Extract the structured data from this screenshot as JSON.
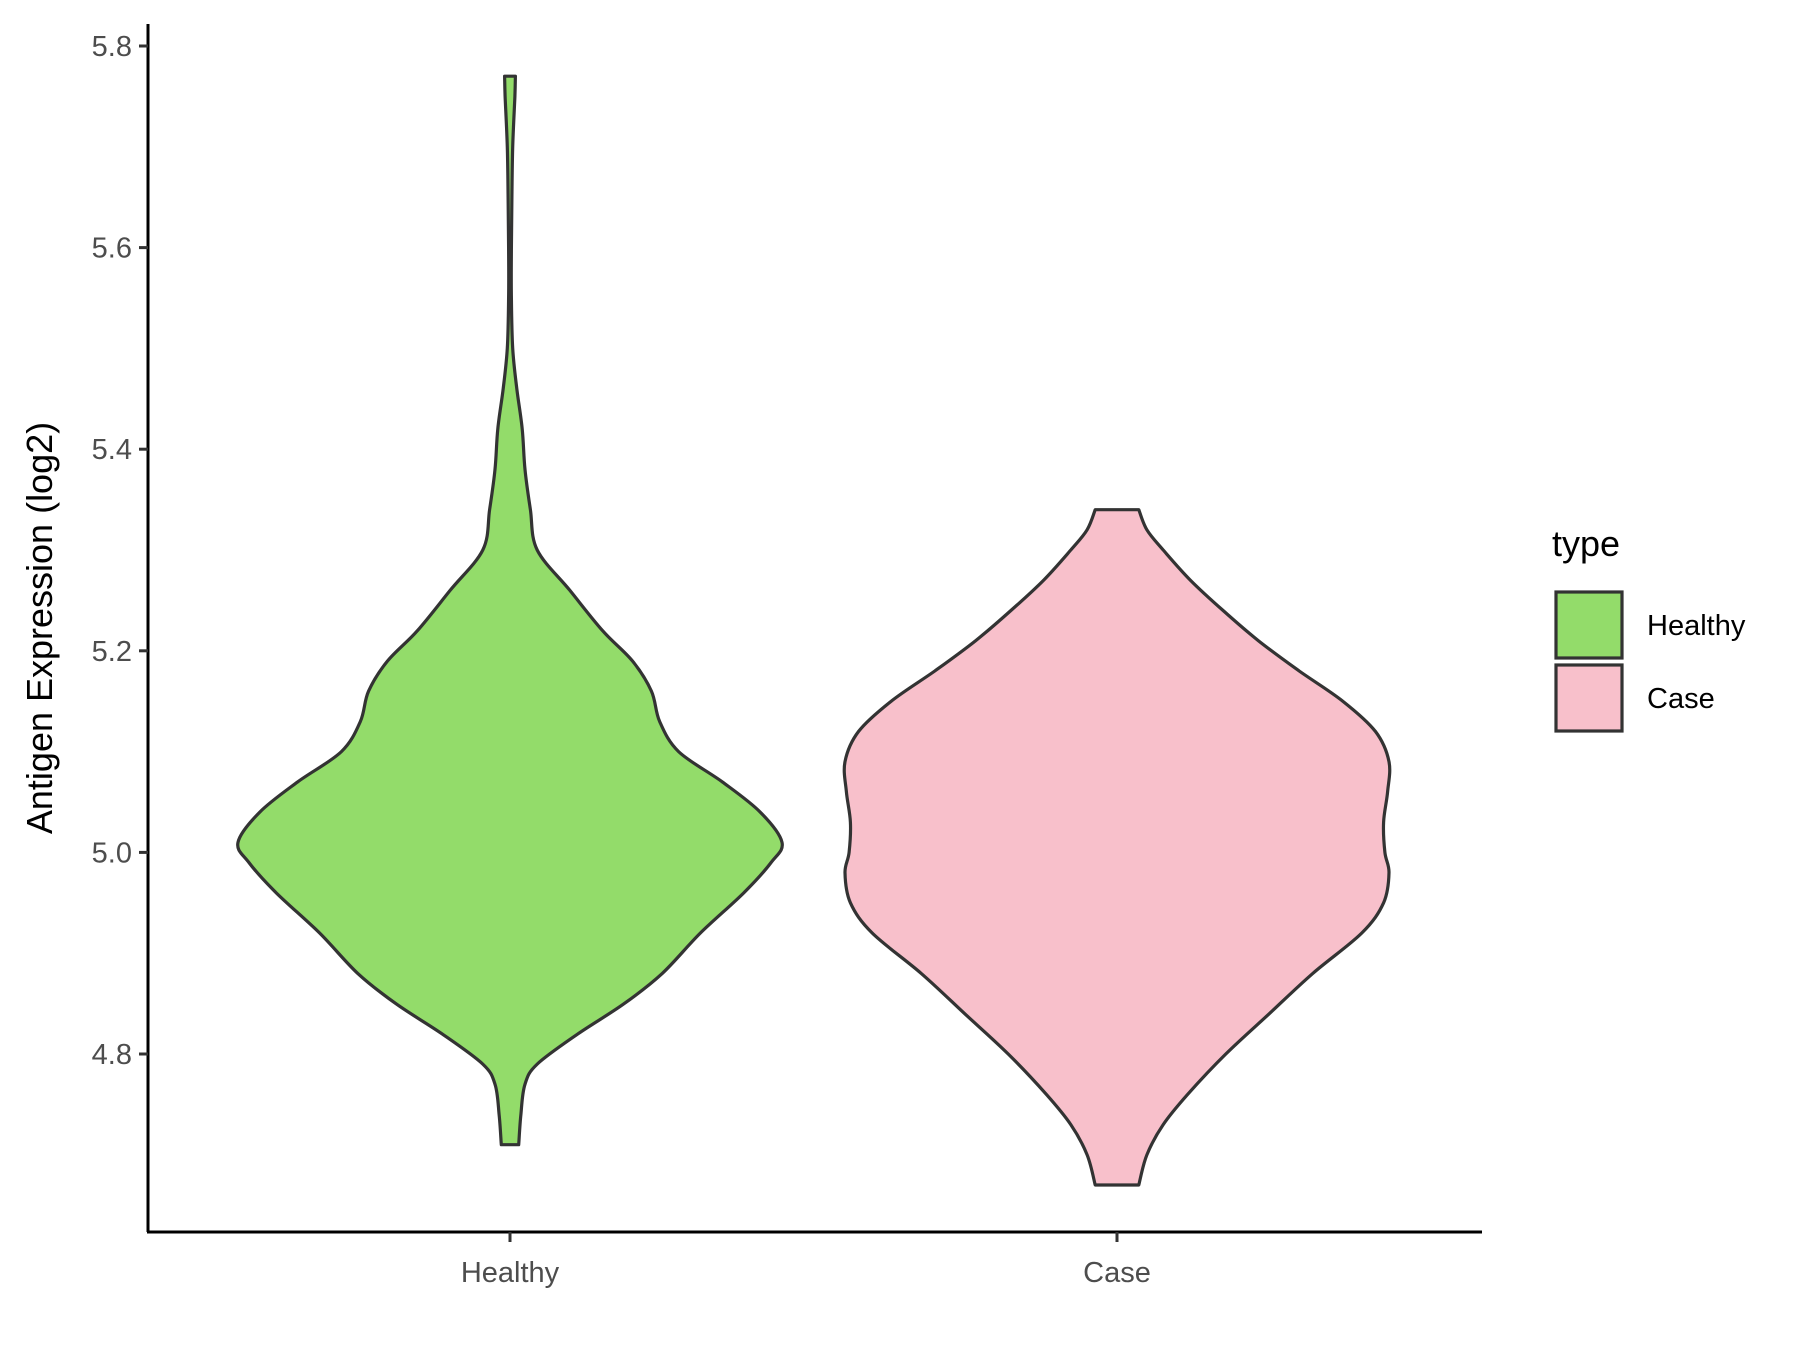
{
  "chart_data": {
    "type": "violin",
    "title": "",
    "xlabel": "",
    "ylabel": "Antigen Expression (log2)",
    "ylim": [
      4.63,
      5.82
    ],
    "yticks": [
      "4.8",
      "5.0",
      "5.2",
      "5.4",
      "5.6",
      "5.8"
    ],
    "grid": false,
    "legend": {
      "title": "type",
      "position": "right"
    },
    "categories": [
      "Healthy",
      "Case"
    ],
    "series": [
      {
        "name": "Healthy",
        "color": "#93DC6A",
        "min": 4.71,
        "max": 5.77,
        "density": [
          [
            4.71,
            0.032
          ],
          [
            4.74,
            0.04
          ],
          [
            4.77,
            0.055
          ],
          [
            4.79,
            0.1
          ],
          [
            4.82,
            0.25
          ],
          [
            4.85,
            0.42
          ],
          [
            4.88,
            0.56
          ],
          [
            4.92,
            0.7
          ],
          [
            4.96,
            0.86
          ],
          [
            4.99,
            0.96
          ],
          [
            5.01,
            1.0
          ],
          [
            5.04,
            0.92
          ],
          [
            5.07,
            0.78
          ],
          [
            5.1,
            0.62
          ],
          [
            5.13,
            0.55
          ],
          [
            5.16,
            0.52
          ],
          [
            5.19,
            0.45
          ],
          [
            5.22,
            0.34
          ],
          [
            5.26,
            0.22
          ],
          [
            5.3,
            0.1
          ],
          [
            5.34,
            0.075
          ],
          [
            5.38,
            0.055
          ],
          [
            5.42,
            0.045
          ],
          [
            5.46,
            0.025
          ],
          [
            5.5,
            0.01
          ],
          [
            5.55,
            0.005
          ],
          [
            5.6,
            0.005
          ],
          [
            5.65,
            0.007
          ],
          [
            5.7,
            0.01
          ],
          [
            5.75,
            0.018
          ],
          [
            5.77,
            0.02
          ]
        ]
      },
      {
        "name": "Case",
        "color": "#F8C0CB",
        "min": 4.67,
        "max": 5.34,
        "density": [
          [
            4.67,
            0.08
          ],
          [
            4.7,
            0.11
          ],
          [
            4.73,
            0.17
          ],
          [
            4.76,
            0.26
          ],
          [
            4.8,
            0.4
          ],
          [
            4.84,
            0.56
          ],
          [
            4.88,
            0.72
          ],
          [
            4.92,
            0.9
          ],
          [
            4.95,
            0.98
          ],
          [
            4.98,
            1.0
          ],
          [
            5.0,
            0.985
          ],
          [
            5.03,
            0.98
          ],
          [
            5.06,
            0.995
          ],
          [
            5.09,
            1.0
          ],
          [
            5.12,
            0.95
          ],
          [
            5.15,
            0.83
          ],
          [
            5.18,
            0.67
          ],
          [
            5.21,
            0.52
          ],
          [
            5.24,
            0.39
          ],
          [
            5.27,
            0.27
          ],
          [
            5.3,
            0.17
          ],
          [
            5.32,
            0.11
          ],
          [
            5.34,
            0.08
          ]
        ]
      }
    ]
  }
}
